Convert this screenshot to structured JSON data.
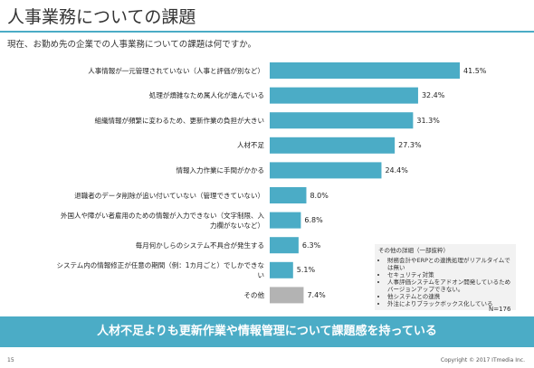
{
  "chart_data": {
    "type": "bar",
    "title": "人事業務についての課題",
    "subtitle": "現在、お勤め先の企業での人事業務についての課題は何ですか。",
    "categories": [
      "人事情報が一元管理されていない（人事と評価が別など）",
      "処理が煩雑なため属人化が進んでいる",
      "組織情報が頻繁に変わるため、更新作業の負担が大きい",
      "人材不足",
      "情報入力作業に手間がかかる",
      "退職者のデータ削除が追い付いていない（管理できていない）",
      "外国人や障がい者雇用のための情報が入力できない（文字制限、入力欄がないなど）",
      "毎月何かしらのシステム不具合が発生する",
      "システム内の情報修正が任意の期間（例：1カ月ごと）でしかできない",
      "その他"
    ],
    "values": [
      41.5,
      32.4,
      31.3,
      27.3,
      24.4,
      8.0,
      6.8,
      6.3,
      5.1,
      7.4
    ],
    "value_labels": [
      "41.5%",
      "32.4%",
      "31.3%",
      "27.3%",
      "24.4%",
      "8.0%",
      "6.8%",
      "6.3%",
      "5.1%",
      "7.4%"
    ],
    "colors": [
      "#4bacc6",
      "#4bacc6",
      "#4bacc6",
      "#4bacc6",
      "#4bacc6",
      "#4bacc6",
      "#4bacc6",
      "#4bacc6",
      "#4bacc6",
      "#b3b3b3"
    ],
    "note_title": "その他の詳細（一部抜粋）",
    "notes": [
      "財務会計やERPとの連携処理がリアルタイムでは無い",
      "セキュリティ対策",
      "人事評価システムをアドオン開発しているためバージョンアップできない。",
      "他システムとの連携",
      "外注によりブラックボックス化している"
    ],
    "sample_size": "N=176"
  },
  "conclusion": "人材不足よりも更新作業や情報管理について課題感を持っている",
  "page_number": "15",
  "copyright": "Copyright © 2017 ITmedia Inc."
}
